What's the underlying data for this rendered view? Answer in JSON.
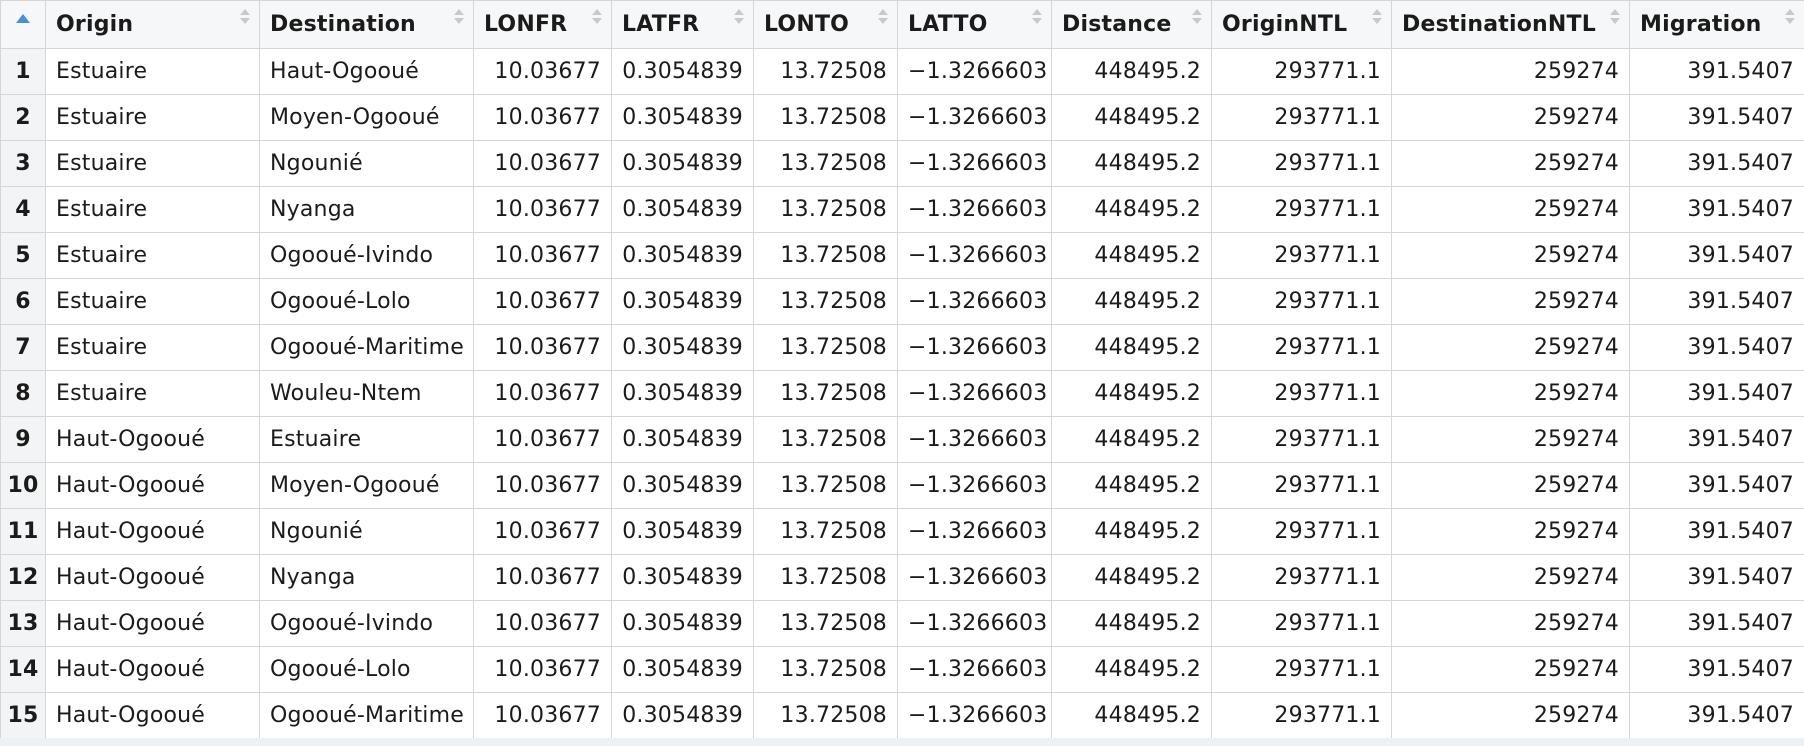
{
  "table": {
    "columns": [
      "Origin",
      "Destination",
      "LONFR",
      "LATFR",
      "LONTO",
      "LATTO",
      "Distance",
      "OriginNTL",
      "DestinationNTL",
      "Migration"
    ],
    "rows": [
      {
        "n": "1",
        "origin": "Estuaire",
        "destination": "Haut-Ogooué",
        "lonfr": "10.03677",
        "latfr": "0.3054839",
        "lonto": "13.72508",
        "latto": "-1.3266603",
        "distance": "448495.2",
        "originntl": "293771.1",
        "destinationntl": "259274",
        "migration": "391.5407"
      },
      {
        "n": "2",
        "origin": "Estuaire",
        "destination": "Moyen-Ogooué",
        "lonfr": "10.03677",
        "latfr": "0.3054839",
        "lonto": "13.72508",
        "latto": "-1.3266603",
        "distance": "448495.2",
        "originntl": "293771.1",
        "destinationntl": "259274",
        "migration": "391.5407"
      },
      {
        "n": "3",
        "origin": "Estuaire",
        "destination": "Ngounié",
        "lonfr": "10.03677",
        "latfr": "0.3054839",
        "lonto": "13.72508",
        "latto": "-1.3266603",
        "distance": "448495.2",
        "originntl": "293771.1",
        "destinationntl": "259274",
        "migration": "391.5407"
      },
      {
        "n": "4",
        "origin": "Estuaire",
        "destination": "Nyanga",
        "lonfr": "10.03677",
        "latfr": "0.3054839",
        "lonto": "13.72508",
        "latto": "-1.3266603",
        "distance": "448495.2",
        "originntl": "293771.1",
        "destinationntl": "259274",
        "migration": "391.5407"
      },
      {
        "n": "5",
        "origin": "Estuaire",
        "destination": "Ogooué-Ivindo",
        "lonfr": "10.03677",
        "latfr": "0.3054839",
        "lonto": "13.72508",
        "latto": "-1.3266603",
        "distance": "448495.2",
        "originntl": "293771.1",
        "destinationntl": "259274",
        "migration": "391.5407"
      },
      {
        "n": "6",
        "origin": "Estuaire",
        "destination": "Ogooué-Lolo",
        "lonfr": "10.03677",
        "latfr": "0.3054839",
        "lonto": "13.72508",
        "latto": "-1.3266603",
        "distance": "448495.2",
        "originntl": "293771.1",
        "destinationntl": "259274",
        "migration": "391.5407"
      },
      {
        "n": "7",
        "origin": "Estuaire",
        "destination": "Ogooué-Maritime",
        "lonfr": "10.03677",
        "latfr": "0.3054839",
        "lonto": "13.72508",
        "latto": "-1.3266603",
        "distance": "448495.2",
        "originntl": "293771.1",
        "destinationntl": "259274",
        "migration": "391.5407"
      },
      {
        "n": "8",
        "origin": "Estuaire",
        "destination": "Wouleu-Ntem",
        "lonfr": "10.03677",
        "latfr": "0.3054839",
        "lonto": "13.72508",
        "latto": "-1.3266603",
        "distance": "448495.2",
        "originntl": "293771.1",
        "destinationntl": "259274",
        "migration": "391.5407"
      },
      {
        "n": "9",
        "origin": "Haut-Ogooué",
        "destination": "Estuaire",
        "lonfr": "10.03677",
        "latfr": "0.3054839",
        "lonto": "13.72508",
        "latto": "-1.3266603",
        "distance": "448495.2",
        "originntl": "293771.1",
        "destinationntl": "259274",
        "migration": "391.5407"
      },
      {
        "n": "10",
        "origin": "Haut-Ogooué",
        "destination": "Moyen-Ogooué",
        "lonfr": "10.03677",
        "latfr": "0.3054839",
        "lonto": "13.72508",
        "latto": "-1.3266603",
        "distance": "448495.2",
        "originntl": "293771.1",
        "destinationntl": "259274",
        "migration": "391.5407"
      },
      {
        "n": "11",
        "origin": "Haut-Ogooué",
        "destination": "Ngounié",
        "lonfr": "10.03677",
        "latfr": "0.3054839",
        "lonto": "13.72508",
        "latto": "-1.3266603",
        "distance": "448495.2",
        "originntl": "293771.1",
        "destinationntl": "259274",
        "migration": "391.5407"
      },
      {
        "n": "12",
        "origin": "Haut-Ogooué",
        "destination": "Nyanga",
        "lonfr": "10.03677",
        "latfr": "0.3054839",
        "lonto": "13.72508",
        "latto": "-1.3266603",
        "distance": "448495.2",
        "originntl": "293771.1",
        "destinationntl": "259274",
        "migration": "391.5407"
      },
      {
        "n": "13",
        "origin": "Haut-Ogooué",
        "destination": "Ogooué-Ivindo",
        "lonfr": "10.03677",
        "latfr": "0.3054839",
        "lonto": "13.72508",
        "latto": "-1.3266603",
        "distance": "448495.2",
        "originntl": "293771.1",
        "destinationntl": "259274",
        "migration": "391.5407"
      },
      {
        "n": "14",
        "origin": "Haut-Ogooué",
        "destination": "Ogooué-Lolo",
        "lonfr": "10.03677",
        "latfr": "0.3054839",
        "lonto": "13.72508",
        "latto": "-1.3266603",
        "distance": "448495.2",
        "originntl": "293771.1",
        "destinationntl": "259274",
        "migration": "391.5407"
      },
      {
        "n": "15",
        "origin": "Haut-Ogooué",
        "destination": "Ogooué-Maritime",
        "lonfr": "10.03677",
        "latfr": "0.3054839",
        "lonto": "13.72508",
        "latto": "-1.3266603",
        "distance": "448495.2",
        "originntl": "293771.1",
        "destinationntl": "259274",
        "migration": "391.5407"
      }
    ]
  },
  "colors": {
    "accent": "#4a90d9",
    "header_bg": "#f6f7f8",
    "rownum_bg": "#f2f4f6",
    "grid": "#d6d6d6"
  },
  "icons": {
    "rownum_header": "sort-ascending-icon",
    "column_header": "sort-icon"
  }
}
